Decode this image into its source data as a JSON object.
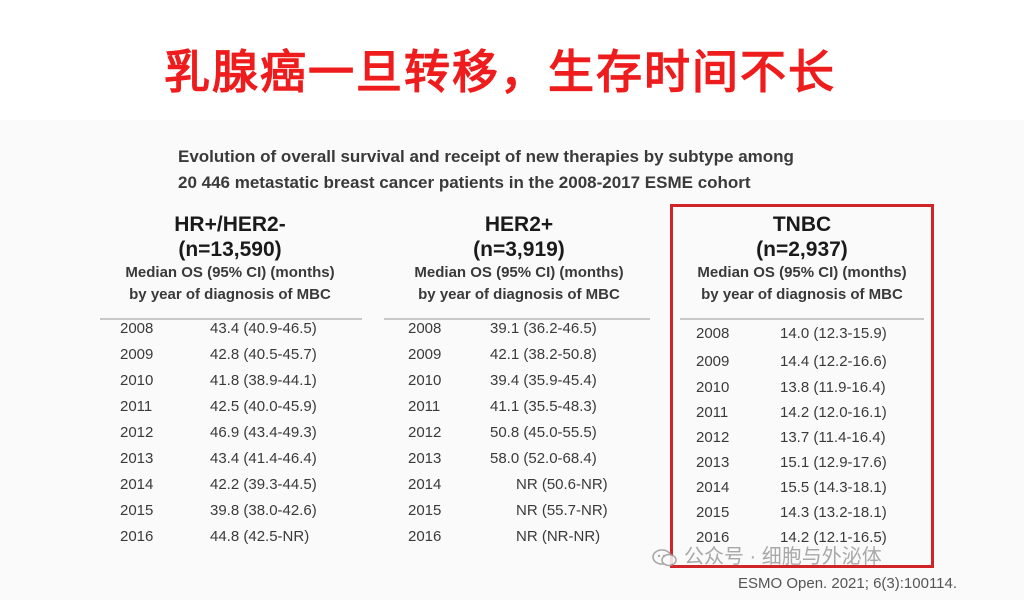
{
  "slide": {
    "title": "乳腺癌一旦转移，生存时间不长",
    "subtitle_line1": "Evolution of overall survival and receipt of new therapies by subtype among",
    "subtitle_line2": "20 446 metastatic breast cancer patients in the 2008-2017 ESME cohort",
    "desc_line1": "Median OS (95% CI) (months)",
    "desc_line2": "by year of diagnosis of MBC"
  },
  "panels": [
    {
      "name": "HR+/HER2-",
      "n": "(n=13,590)",
      "rows": [
        {
          "year": "2008",
          "value": "43.4 (40.9-46.5)"
        },
        {
          "year": "2009",
          "value": "42.8 (40.5-45.7)"
        },
        {
          "year": "2010",
          "value": "41.8 (38.9-44.1)"
        },
        {
          "year": "2011",
          "value": "42.5 (40.0-45.9)"
        },
        {
          "year": "2012",
          "value": "46.9 (43.4-49.3)"
        },
        {
          "year": "2013",
          "value": "43.4 (41.4-46.4)"
        },
        {
          "year": "2014",
          "value": "42.2 (39.3-44.5)"
        },
        {
          "year": "2015",
          "value": "39.8 (38.0-42.6)"
        },
        {
          "year": "2016",
          "value": "44.8 (42.5-NR)"
        }
      ]
    },
    {
      "name": "HER2+",
      "n": "(n=3,919)",
      "rows": [
        {
          "year": "2008",
          "value": "39.1 (36.2-46.5)"
        },
        {
          "year": "2009",
          "value": "42.1 (38.2-50.8)"
        },
        {
          "year": "2010",
          "value": "39.4 (35.9-45.4)"
        },
        {
          "year": "2011",
          "value": "41.1 (35.5-48.3)"
        },
        {
          "year": "2012",
          "value": "50.8 (45.0-55.5)"
        },
        {
          "year": "2013",
          "value": "58.0 (52.0-68.4)"
        },
        {
          "year": "2014",
          "value": "NR (50.6-NR)"
        },
        {
          "year": "2015",
          "value": "NR (55.7-NR)"
        },
        {
          "year": "2016",
          "value": "NR (NR-NR)"
        }
      ]
    },
    {
      "name": "TNBC",
      "n": "(n=2,937)",
      "rows": [
        {
          "year": "2008",
          "value": "14.0 (12.3-15.9)"
        },
        {
          "year": "2009",
          "value": "14.4 (12.2-16.6)"
        },
        {
          "year": "2010",
          "value": "13.8 (11.9-16.4)"
        },
        {
          "year": "2011",
          "value": "14.2 (12.0-16.1)"
        },
        {
          "year": "2012",
          "value": "13.7 (11.4-16.4)"
        },
        {
          "year": "2013",
          "value": "15.1 (12.9-17.6)"
        },
        {
          "year": "2014",
          "value": "15.5 (14.3-18.1)"
        },
        {
          "year": "2015",
          "value": "14.3 (13.2-18.1)"
        },
        {
          "year": "2016",
          "value": "14.2 (12.1-16.5)"
        }
      ]
    }
  ],
  "watermark": "公众号 · 细胞与外泌体",
  "citation": "ESMO Open. 2021; 6(3):100114.",
  "colors": {
    "title_red": "#ee1c1c",
    "box_red": "#d1232a",
    "text_dark": "#3a3a3a"
  }
}
